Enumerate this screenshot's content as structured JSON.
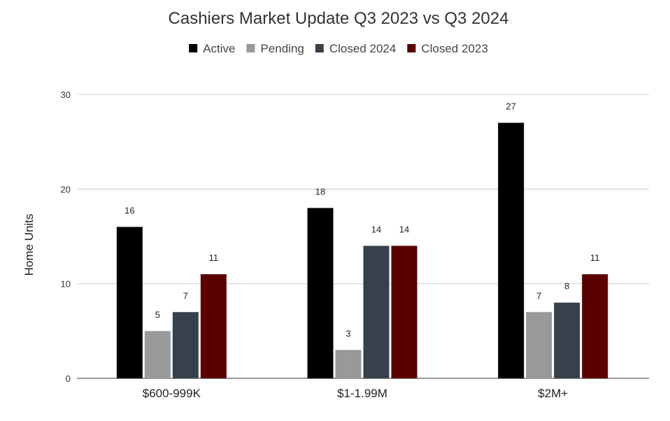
{
  "chart_data": {
    "type": "bar",
    "title": "Cashiers Market Update Q3 2023 vs Q3 2024",
    "xlabel": "",
    "ylabel": "Home Units",
    "categories": [
      "$600-999K",
      "$1-1.99M",
      "$2M+"
    ],
    "series": [
      {
        "name": "Active",
        "color": "#000000",
        "values": [
          16,
          18,
          27
        ]
      },
      {
        "name": "Pending",
        "color": "#999999",
        "values": [
          5,
          3,
          7
        ]
      },
      {
        "name": "Closed 2024",
        "color": "#37414b",
        "values": [
          7,
          14,
          8
        ]
      },
      {
        "name": "Closed 2023",
        "color": "#5a0000",
        "values": [
          11,
          14,
          11
        ]
      }
    ],
    "ylim": [
      0,
      30
    ],
    "yticks": [
      "0",
      "10",
      "20",
      "30"
    ],
    "grid": true,
    "legend_position": "top"
  }
}
